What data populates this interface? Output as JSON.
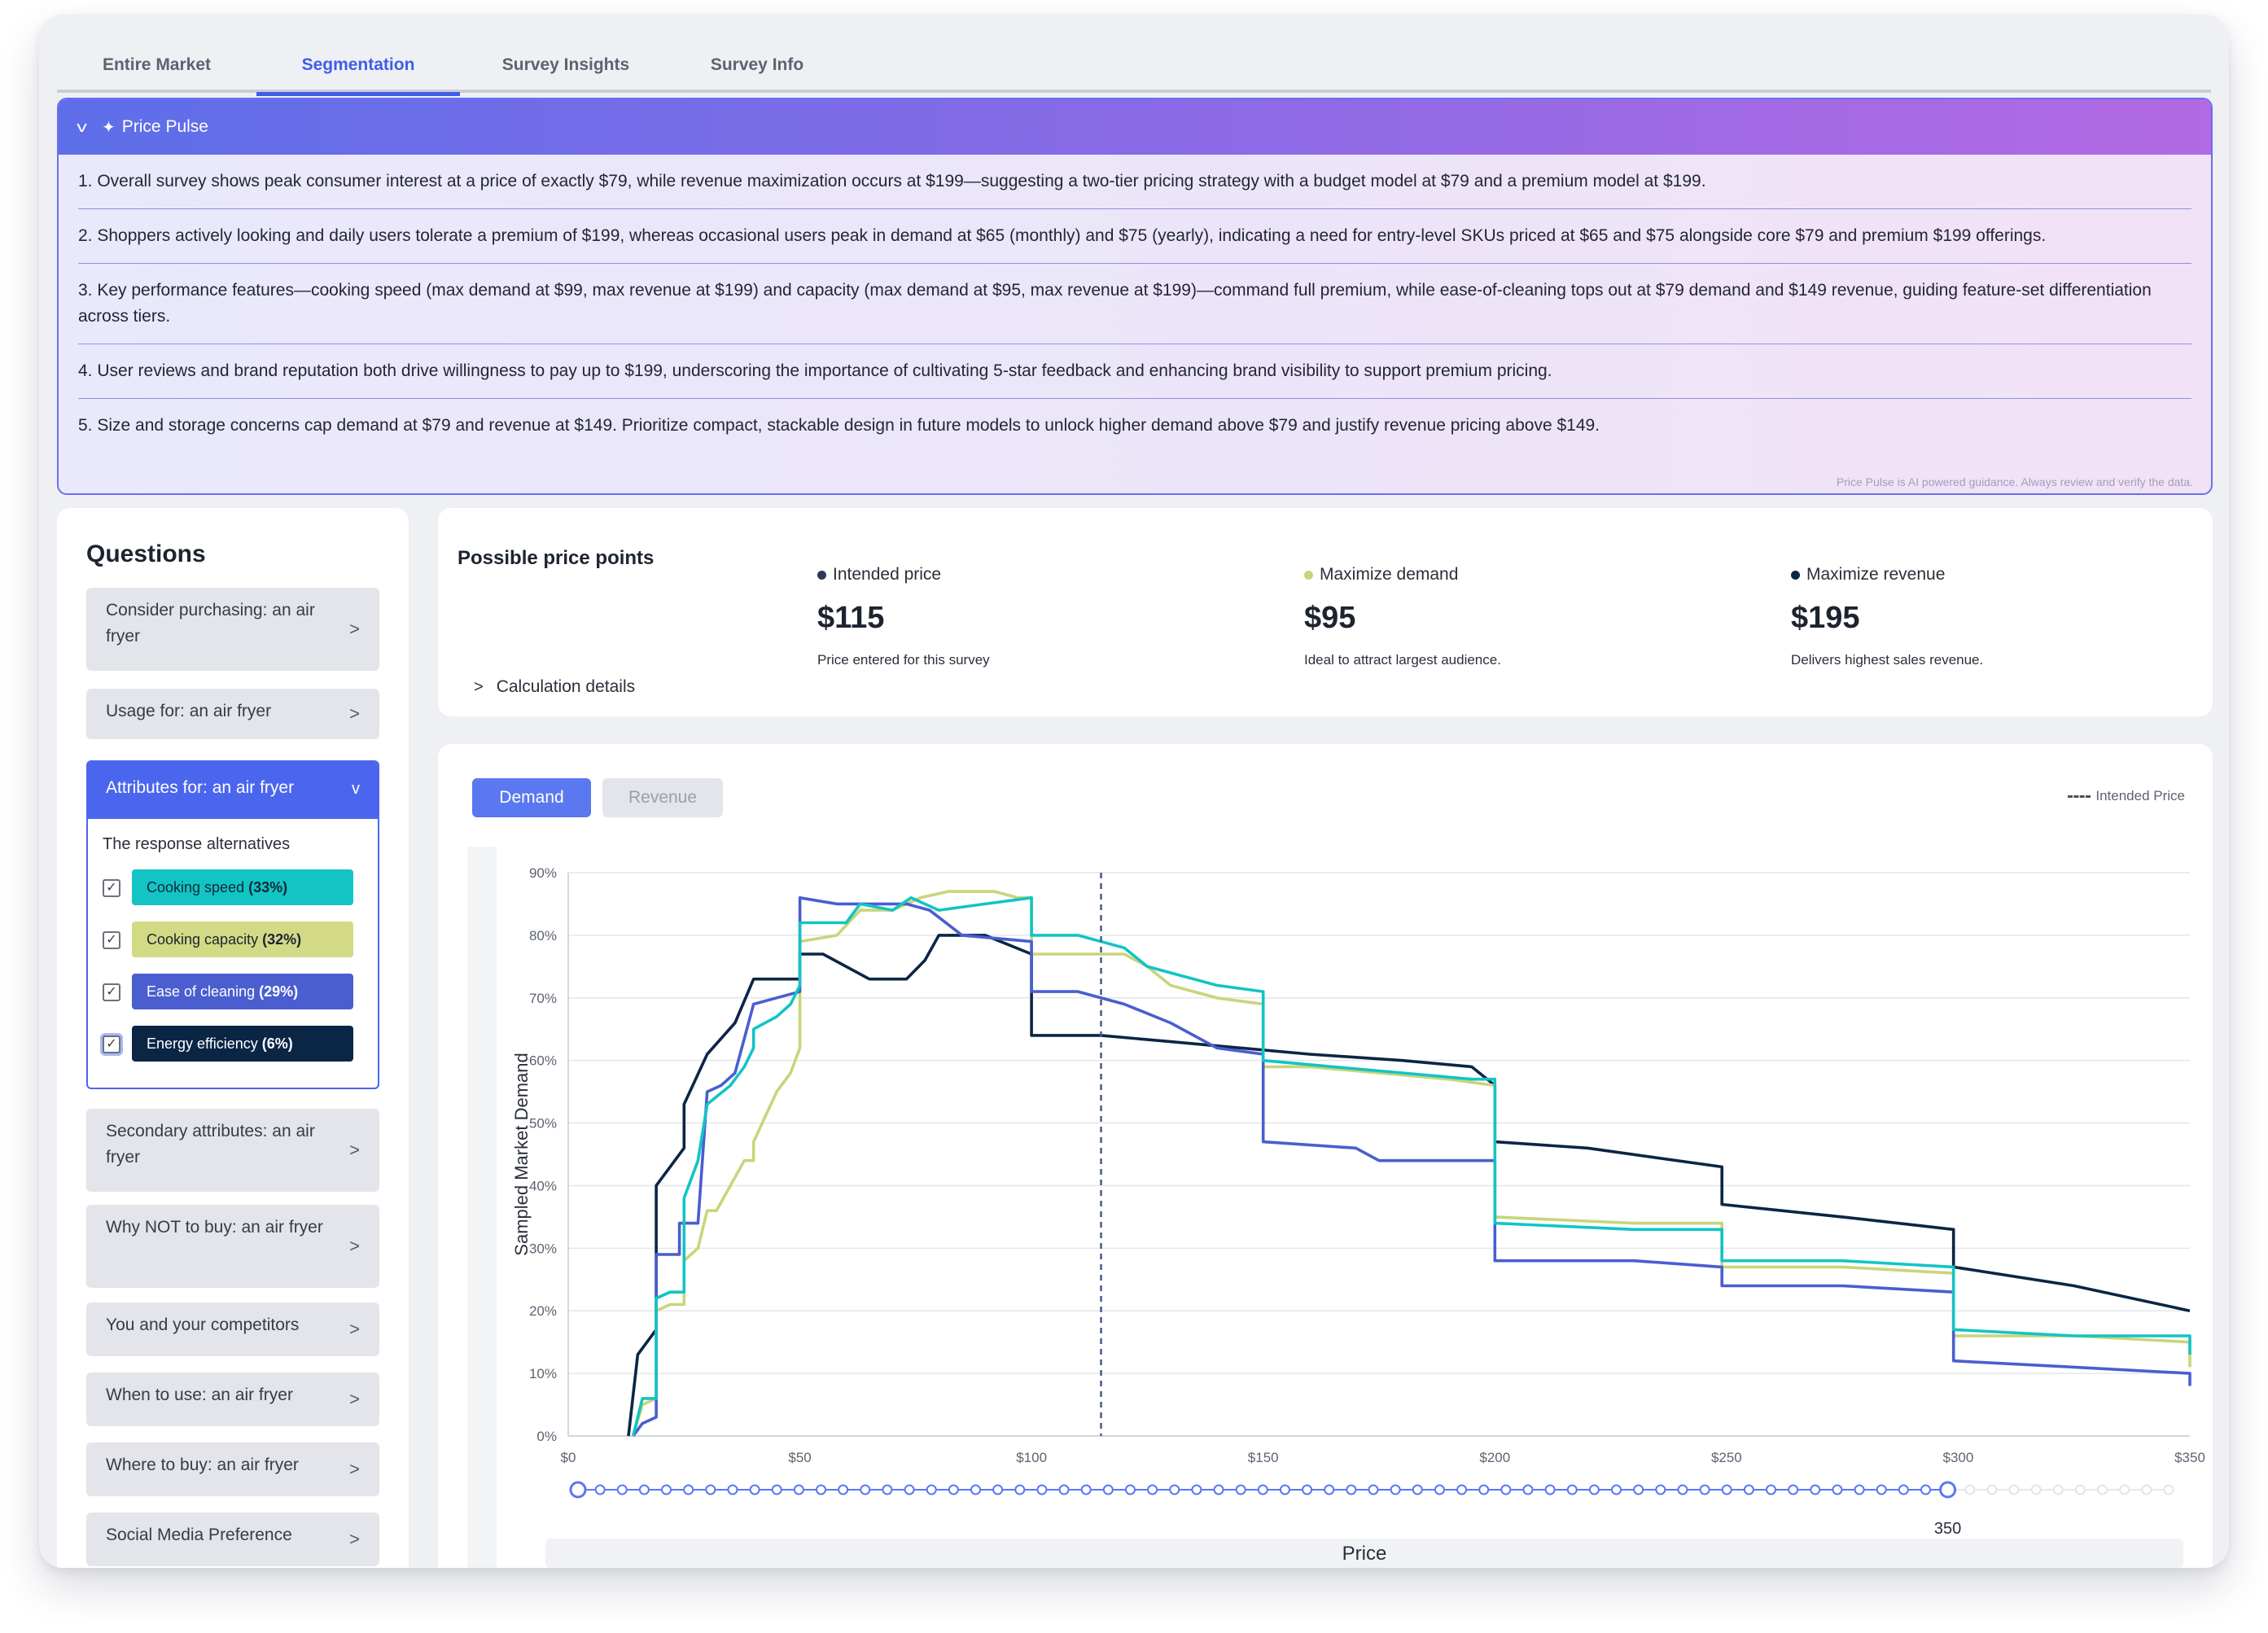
{
  "tabs": [
    {
      "label": "Entire Market",
      "active": false
    },
    {
      "label": "Segmentation",
      "active": true
    },
    {
      "label": "Survey Insights",
      "active": false
    },
    {
      "label": "Survey Info",
      "active": false
    }
  ],
  "price_pulse": {
    "title": "Price Pulse",
    "items": [
      "1. Overall survey shows peak consumer interest at a price of exactly $79, while revenue maximization occurs at $199—suggesting a two-tier pricing strategy with a budget model at $79 and a premium model at $199.",
      "2. Shoppers actively looking and daily users tolerate a premium of $199, whereas occasional users peak in demand at $65 (monthly) and $75 (yearly), indicating a need for entry-level SKUs priced at $65 and $75 alongside core $79 and premium $199 offerings.",
      "3. Key performance features—cooking speed (max demand at $99, max revenue at $199) and capacity (max demand at $95, max revenue at $199)—command full premium, while ease-of-cleaning tops out at $79 demand and $149 revenue, guiding feature-set differentiation across tiers.",
      "4. User reviews and brand reputation both drive willingness to pay up to $199, underscoring the importance of cultivating 5-star feedback and enhancing brand visibility to support premium pricing.",
      "5. Size and storage concerns cap demand at $79 and revenue at $149. Prioritize compact, stackable design in future models to unlock higher demand above $79 and justify revenue pricing above $149."
    ],
    "note": "Price Pulse is AI powered guidance. Always review and verify the data."
  },
  "questions": {
    "title": "Questions",
    "items_before": [
      "Consider purchasing: an air fryer",
      "Usage for: an air fryer"
    ],
    "open_item": {
      "label": "Attributes for: an air fryer",
      "response_label": "The response alternatives",
      "responses": [
        {
          "name": "Cooking speed",
          "pct": "(33%)",
          "color": "#13c4c4",
          "text_color": "#0f2a3a",
          "checked": true
        },
        {
          "name": "Cooking capacity",
          "pct": "(32%)",
          "color": "#d3da86",
          "text_color": "#1d2430",
          "checked": true
        },
        {
          "name": "Ease of cleaning",
          "pct": "(29%)",
          "color": "#4a5ed0",
          "text_color": "#ffffff",
          "checked": true
        },
        {
          "name": "Energy efficiency",
          "pct": "(6%)",
          "color": "#0b2545",
          "text_color": "#ffffff",
          "checked": true
        }
      ]
    },
    "items_after": [
      "Secondary attributes: an air fryer",
      "Why NOT to buy: an air fryer",
      "You and your competitors",
      "When to use: an air fryer",
      "Where to buy: an air fryer",
      "Social Media Preference"
    ]
  },
  "price_points": {
    "title": "Possible price points",
    "calc_label": "Calculation details",
    "columns": [
      {
        "label": "Intended price",
        "value": "$115",
        "desc": "Price entered for this survey",
        "dot_color": "#2b3a55"
      },
      {
        "label": "Maximize demand",
        "value": "$95",
        "desc": "Ideal to attract largest audience.",
        "dot_color": "#c9d579"
      },
      {
        "label": "Maximize revenue",
        "value": "$195",
        "desc": "Delivers highest sales revenue.",
        "dot_color": "#0b2545"
      }
    ]
  },
  "chart_controls": {
    "demand_label": "Demand",
    "revenue_label": "Revenue",
    "intended_legend": "Intended Price",
    "slider_value": "350"
  },
  "chart_data": {
    "type": "line",
    "title": "",
    "xlabel": "Price",
    "ylabel": "Sampled Market Demand",
    "xlim": [
      0,
      350
    ],
    "ylim": [
      0,
      90
    ],
    "x_ticks": [
      "$0",
      "$50",
      "$100",
      "$150",
      "$200",
      "$250",
      "$300",
      "$350"
    ],
    "y_ticks": [
      "0%",
      "10%",
      "20%",
      "30%",
      "40%",
      "50%",
      "60%",
      "70%",
      "80%",
      "90%"
    ],
    "intended_price": 115,
    "grid": true,
    "series": [
      {
        "name": "Energy efficiency",
        "color": "#0b2545",
        "points": [
          [
            13,
            0
          ],
          [
            15,
            13
          ],
          [
            19,
            17
          ],
          [
            19,
            40
          ],
          [
            25,
            46
          ],
          [
            25,
            53
          ],
          [
            30,
            61
          ],
          [
            36,
            66
          ],
          [
            40,
            73
          ],
          [
            50,
            73
          ],
          [
            50,
            77
          ],
          [
            55,
            77
          ],
          [
            65,
            73
          ],
          [
            73,
            73
          ],
          [
            77,
            76
          ],
          [
            80,
            80
          ],
          [
            90,
            80
          ],
          [
            100,
            77
          ],
          [
            100,
            64
          ],
          [
            115,
            64
          ],
          [
            130,
            63
          ],
          [
            145,
            62
          ],
          [
            160,
            61
          ],
          [
            180,
            60
          ],
          [
            195,
            59
          ],
          [
            200,
            56
          ],
          [
            200,
            47
          ],
          [
            220,
            46
          ],
          [
            249,
            43
          ],
          [
            249,
            37
          ],
          [
            275,
            35
          ],
          [
            299,
            33
          ],
          [
            299,
            27
          ],
          [
            325,
            24
          ],
          [
            350,
            20
          ]
        ]
      },
      {
        "name": "Cooking capacity",
        "color": "#c9d579",
        "points": [
          [
            14,
            0
          ],
          [
            16,
            5
          ],
          [
            19,
            6
          ],
          [
            19,
            20
          ],
          [
            22,
            21
          ],
          [
            25,
            21
          ],
          [
            25,
            28
          ],
          [
            28,
            30
          ],
          [
            30,
            36
          ],
          [
            32,
            36
          ],
          [
            35,
            40
          ],
          [
            38,
            44
          ],
          [
            40,
            44
          ],
          [
            40,
            47
          ],
          [
            45,
            55
          ],
          [
            48,
            58
          ],
          [
            50,
            62
          ],
          [
            50,
            79
          ],
          [
            58,
            80
          ],
          [
            63,
            84
          ],
          [
            70,
            84
          ],
          [
            76,
            86
          ],
          [
            82,
            87
          ],
          [
            92,
            87
          ],
          [
            97,
            86
          ],
          [
            100,
            86
          ],
          [
            100,
            77
          ],
          [
            120,
            77
          ],
          [
            125,
            75
          ],
          [
            130,
            72
          ],
          [
            135,
            71
          ],
          [
            140,
            70
          ],
          [
            150,
            69
          ],
          [
            150,
            59
          ],
          [
            160,
            59
          ],
          [
            175,
            58
          ],
          [
            190,
            57
          ],
          [
            200,
            56
          ],
          [
            200,
            35
          ],
          [
            230,
            34
          ],
          [
            249,
            34
          ],
          [
            249,
            27
          ],
          [
            275,
            27
          ],
          [
            299,
            26
          ],
          [
            299,
            16
          ],
          [
            325,
            16
          ],
          [
            350,
            15
          ],
          [
            350,
            11
          ]
        ]
      },
      {
        "name": "Ease of cleaning",
        "color": "#4a5ed0",
        "points": [
          [
            14,
            0
          ],
          [
            16,
            2
          ],
          [
            19,
            3
          ],
          [
            19,
            29
          ],
          [
            24,
            29
          ],
          [
            24,
            34
          ],
          [
            28,
            34
          ],
          [
            30,
            55
          ],
          [
            33,
            56
          ],
          [
            36,
            58
          ],
          [
            40,
            69
          ],
          [
            45,
            70
          ],
          [
            50,
            71
          ],
          [
            50,
            86
          ],
          [
            58,
            85
          ],
          [
            63,
            85
          ],
          [
            73,
            85
          ],
          [
            78,
            84
          ],
          [
            85,
            80
          ],
          [
            100,
            79
          ],
          [
            100,
            71
          ],
          [
            110,
            71
          ],
          [
            120,
            69
          ],
          [
            130,
            66
          ],
          [
            140,
            62
          ],
          [
            150,
            61
          ],
          [
            150,
            47
          ],
          [
            170,
            46
          ],
          [
            175,
            44
          ],
          [
            190,
            44
          ],
          [
            200,
            44
          ],
          [
            200,
            28
          ],
          [
            230,
            28
          ],
          [
            249,
            27
          ],
          [
            249,
            24
          ],
          [
            275,
            24
          ],
          [
            299,
            23
          ],
          [
            299,
            12
          ],
          [
            325,
            11
          ],
          [
            350,
            10
          ],
          [
            350,
            8
          ]
        ]
      },
      {
        "name": "Cooking speed",
        "color": "#13c4c4",
        "points": [
          [
            14,
            0
          ],
          [
            16,
            6
          ],
          [
            19,
            6
          ],
          [
            19,
            22
          ],
          [
            22,
            23
          ],
          [
            25,
            23
          ],
          [
            25,
            38
          ],
          [
            28,
            44
          ],
          [
            30,
            53
          ],
          [
            35,
            56
          ],
          [
            38,
            59
          ],
          [
            40,
            62
          ],
          [
            40,
            65
          ],
          [
            45,
            67
          ],
          [
            48,
            69
          ],
          [
            50,
            72
          ],
          [
            50,
            82
          ],
          [
            60,
            82
          ],
          [
            63,
            85
          ],
          [
            70,
            84
          ],
          [
            74,
            86
          ],
          [
            80,
            84
          ],
          [
            90,
            85
          ],
          [
            100,
            86
          ],
          [
            100,
            80
          ],
          [
            110,
            80
          ],
          [
            120,
            78
          ],
          [
            125,
            75
          ],
          [
            130,
            74
          ],
          [
            140,
            72
          ],
          [
            150,
            71
          ],
          [
            150,
            60
          ],
          [
            165,
            59
          ],
          [
            180,
            58
          ],
          [
            195,
            57
          ],
          [
            200,
            57
          ],
          [
            200,
            34
          ],
          [
            230,
            33
          ],
          [
            249,
            33
          ],
          [
            249,
            28
          ],
          [
            275,
            28
          ],
          [
            299,
            27
          ],
          [
            299,
            17
          ],
          [
            325,
            16
          ],
          [
            350,
            16
          ],
          [
            350,
            13
          ]
        ]
      }
    ]
  }
}
